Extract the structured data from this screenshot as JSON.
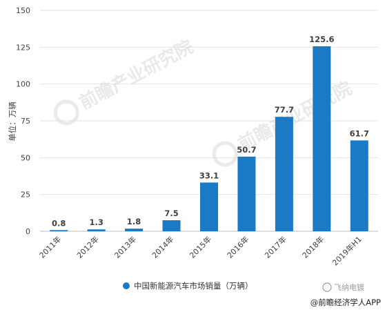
{
  "chart_data": {
    "type": "bar",
    "categories": [
      "2011年",
      "2012年",
      "2013年",
      "2014年",
      "2015年",
      "2016年",
      "2017年",
      "2018年",
      "2019年H1"
    ],
    "series": [
      {
        "name": "中国新能源汽车市场销量（万辆）",
        "values": [
          0.8,
          1.3,
          1.8,
          7.5,
          33.1,
          50.7,
          77.7,
          125.6,
          61.7
        ]
      }
    ],
    "data_labels": [
      "0.8",
      "1.3",
      "1.8",
      "7.5",
      "33.1",
      "50.7",
      "77.7",
      "125.6",
      "61.7"
    ],
    "ylabel": "单位：万辆",
    "xlabel": "",
    "ylim": [
      0,
      150
    ],
    "yticks": [
      0,
      25,
      50,
      75,
      100,
      125,
      150
    ],
    "grid": true,
    "legend_position": "bottom-center",
    "bar_color": "#1b7ac6"
  },
  "watermark": {
    "text": "前瞻产业研究院"
  },
  "credits": {
    "top": "飞纳电镀",
    "bottom": "@前瞻经济学人APP"
  }
}
